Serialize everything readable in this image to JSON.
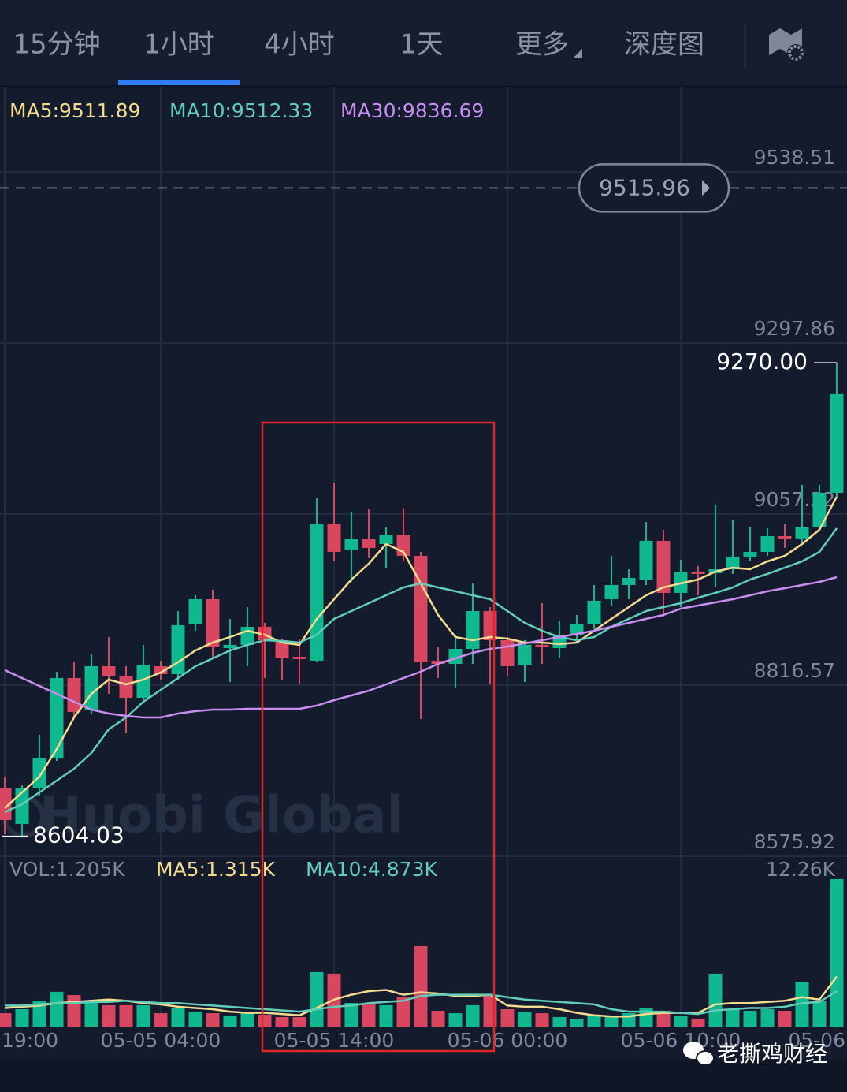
{
  "tabs": [
    "15分钟",
    "1小时",
    "4小时",
    "1天",
    "更多",
    "深度图"
  ],
  "active_tab": 1,
  "watermark": "Huobi Global",
  "footer_watermark": "老撕鸡财经",
  "chart_data": {
    "type": "candlestick",
    "up_color": "#0fb88f",
    "down_color": "#d8465f",
    "grid": true,
    "ylim": [
      8575.92,
      9658.3
    ],
    "yticks": [
      9538.51,
      9297.86,
      9057.22,
      8816.57,
      8575.92
    ],
    "last_price": 9515.96,
    "high_value_label": "9270.00",
    "categories": [
      "19:00",
      null,
      null,
      null,
      null,
      null,
      null,
      null,
      null,
      "05-05 04:00",
      null,
      null,
      null,
      null,
      null,
      null,
      null,
      null,
      null,
      "05-05 14:00",
      null,
      null,
      null,
      null,
      null,
      null,
      null,
      null,
      null,
      "05-06 00:00",
      null,
      null,
      null,
      null,
      null,
      null,
      null,
      null,
      null,
      "05-06 10:00",
      null,
      null,
      null,
      null,
      null,
      null,
      null,
      null,
      null,
      "05-06"
    ],
    "open": [
      8671.3,
      8621.4,
      8671.3,
      8713.4,
      8826.6,
      8782.2,
      8843.2,
      8828.8,
      8798.8,
      8843.2,
      8832.1,
      8902.0,
      8937.5,
      8868.7,
      8873.2,
      8898.7,
      8879.8,
      8856.5,
      8851.0,
      9042.8,
      9007.4,
      9021.8,
      9015.1,
      9028.4,
      8998.5,
      8851.0,
      8846.5,
      8867.6,
      8920.8,
      8879.8,
      8845.4,
      8873.2,
      8868.7,
      8887.6,
      8902.0,
      8937.5,
      8957.4,
      8965.2,
      9019.6,
      8946.4,
      8976.3,
      8974.1,
      8979.6,
      8997.4,
      9004.0,
      9026.2,
      9022.9,
      9039.5,
      9087.2,
      null
    ],
    "high": [
      8687.9,
      8676.8,
      8746.7,
      8835.5,
      8848.8,
      8859.8,
      8884.2,
      8843.2,
      8873.2,
      8851.0,
      8920.8,
      8943.0,
      8950.8,
      8909.8,
      8926.4,
      8904.2,
      8882.0,
      8882.0,
      9079.4,
      9101.6,
      9059.5,
      9065.0,
      9039.5,
      9065.0,
      9004.0,
      8870.9,
      8886.5,
      8959.7,
      8926.4,
      8884.2,
      8879.8,
      8931.9,
      8906.4,
      8915.3,
      8957.4,
      8998.5,
      8979.6,
      9046.2,
      9035.1,
      8992.9,
      8984.1,
      9070.6,
      9048.4,
      9039.5,
      9037.3,
      9042.8,
      9098.3,
      9098.3,
      9270,
      null
    ],
    "low": [
      8607.0,
      8604.03,
      8660.2,
      8710.1,
      8771.1,
      8776.7,
      8804.4,
      8748.9,
      8793.3,
      8824.4,
      8824.4,
      8893.1,
      8854.3,
      8821.0,
      8843.2,
      8826.6,
      8824.4,
      8817.7,
      8848.8,
      8990.7,
      8961.9,
      8995.2,
      8981.8,
      8990.7,
      8768.9,
      8826.6,
      8813.3,
      8846.5,
      8817.7,
      8829.9,
      8821.0,
      8846.5,
      8854.3,
      8876.5,
      8895.3,
      8928.6,
      8937.5,
      8957.4,
      8913.1,
      8926.4,
      8943.0,
      8954.1,
      8973.0,
      8990.7,
      8998.5,
      9009.6,
      9015.1,
      9035.1,
      9081.7,
      null
    ],
    "close": [
      8626.9,
      8671.3,
      8713.4,
      8826.6,
      8778.9,
      8843.2,
      8828.8,
      8798.8,
      8845.4,
      8832.1,
      8900.9,
      8937.5,
      8870.9,
      8873.2,
      8898.7,
      8879.8,
      8854.3,
      8853.2,
      9042.8,
      9004.0,
      9021.8,
      9009.6,
      9028.4,
      8998.5,
      8848.8,
      8846.5,
      8867.6,
      8920.8,
      8879.8,
      8843.2,
      8873.2,
      8870.9,
      8887.6,
      8902.0,
      8935.3,
      8957.4,
      8967.4,
      9019.6,
      8946.4,
      8976.3,
      8973.0,
      8979.6,
      8997.4,
      9004.0,
      9026.2,
      9022.9,
      9039.5,
      9087.2,
      9225.9,
      null
    ],
    "lines": [
      {
        "label": "MA5:9511.89",
        "color": "#f3dc8f",
        "values": [
          8643.6,
          8665.8,
          8687.9,
          8726.8,
          8771.1,
          8804.4,
          8824.4,
          8817.7,
          8824.4,
          8834.3,
          8848.8,
          8865.4,
          8876.5,
          8884.2,
          8893.1,
          8887.6,
          8876.5,
          8873.2,
          8909.8,
          8937.5,
          8965.2,
          8987.4,
          9015.1,
          9004.0,
          8959.7,
          8915.3,
          8884.2,
          8879.8,
          8884.2,
          8882.0,
          8876.5,
          8876.5,
          8874.3,
          8876.5,
          8893.1,
          8909.8,
          8926.4,
          8943.0,
          8954.1,
          8959.7,
          8965.2,
          8976.3,
          8981.8,
          8979.6,
          8990.7,
          8998.5,
          9015.1,
          9035.1,
          9081.7,
          null
        ]
      },
      {
        "label": "MA10:9512.33",
        "color": "#62cdb8",
        "values": [
          8638.0,
          8649.1,
          8665.8,
          8682.4,
          8699.0,
          8721.2,
          8754.5,
          8771.1,
          8793.3,
          8809.9,
          8826.6,
          8843.2,
          8854.3,
          8865.4,
          8873.2,
          8879.8,
          8878.7,
          8876.5,
          8887.6,
          8909.8,
          8920.8,
          8931.9,
          8943.0,
          8954.1,
          8959.7,
          8954.1,
          8948.6,
          8943.0,
          8937.5,
          8920.8,
          8904.2,
          8893.1,
          8884.2,
          8879.8,
          8884.2,
          8898.7,
          8909.8,
          8920.8,
          8926.4,
          8931.9,
          8939.7,
          8946.4,
          8954.1,
          8965.2,
          8973.0,
          8981.8,
          8990.7,
          9004.0,
          9037.3,
          null
        ]
      },
      {
        "label": "MA30:9836.69",
        "color": "#c88ef0",
        "values": [
          8837.7,
          8826.6,
          8815.5,
          8804.4,
          8793.3,
          8782.2,
          8776.7,
          8773.3,
          8771.1,
          8771.1,
          8776.7,
          8780.0,
          8782.2,
          8782.2,
          8783.3,
          8783.3,
          8783.3,
          8783.3,
          8787.8,
          8795.5,
          8802.2,
          8808.8,
          8817.7,
          8826.6,
          8835.5,
          8846.5,
          8854.3,
          8862.1,
          8867.6,
          8870.9,
          8875.4,
          8879.8,
          8884.2,
          8888.7,
          8893.1,
          8898.7,
          8904.2,
          8909.8,
          8915.3,
          8924.2,
          8928.6,
          8933.0,
          8937.5,
          8943.0,
          8948.6,
          8953.0,
          8957.4,
          8961.9,
          8968.5,
          null
        ]
      }
    ],
    "volume": {
      "label": "VOL:1.205K",
      "ylim": [
        0,
        12.26
      ],
      "yticks": [
        {
          "value": 12.26,
          "label": "12.26K"
        }
      ],
      "values": [
        1.17,
        1.5,
        2.15,
        2.94,
        2.67,
        2.15,
        1.83,
        1.83,
        1.83,
        1.17,
        1.63,
        1.3,
        1.17,
        0.98,
        1.17,
        1.04,
        0.85,
        0.85,
        4.57,
        4.44,
        2.02,
        2.02,
        1.83,
        2.48,
        6.72,
        1.37,
        1.17,
        1.83,
        2.61,
        1.5,
        1.3,
        1.17,
        0.85,
        0.72,
        0.98,
        0.85,
        1.17,
        1.63,
        1.37,
        0.98,
        0.72,
        4.44,
        1.5,
        1.37,
        1.5,
        1.37,
        3.78,
        2.15,
        12.26,
        null
      ],
      "lines": [
        {
          "label": "MA5:1.315K",
          "color": "#f3dc8f",
          "values": [
            1.6,
            1.7,
            1.8,
            2.0,
            2.1,
            2.2,
            2.3,
            2.2,
            2.0,
            1.9,
            1.7,
            1.6,
            1.5,
            1.3,
            1.2,
            1.2,
            1.1,
            1.0,
            1.6,
            2.3,
            2.7,
            3.0,
            3.1,
            2.7,
            2.9,
            2.8,
            2.6,
            2.6,
            2.7,
            1.8,
            1.7,
            1.7,
            1.5,
            1.2,
            1.0,
            0.9,
            0.9,
            1.1,
            1.2,
            1.2,
            1.2,
            1.9,
            2.0,
            2.0,
            2.1,
            2.2,
            2.5,
            2.3,
            4.2,
            null
          ]
        },
        {
          "label": "MA10:4.873K",
          "color": "#62cdb8",
          "values": [
            1.8,
            1.8,
            1.9,
            2.0,
            2.0,
            2.1,
            2.1,
            2.2,
            2.1,
            2.0,
            2.0,
            1.9,
            1.8,
            1.7,
            1.6,
            1.5,
            1.4,
            1.3,
            1.5,
            1.7,
            1.8,
            2.0,
            2.1,
            2.2,
            2.6,
            2.7,
            2.7,
            2.7,
            2.7,
            2.5,
            2.3,
            2.2,
            2.1,
            2.0,
            1.9,
            1.5,
            1.3,
            1.3,
            1.3,
            1.2,
            1.1,
            1.4,
            1.5,
            1.6,
            1.6,
            1.7,
            2.0,
            2.1,
            3.0,
            null
          ]
        }
      ]
    }
  }
}
